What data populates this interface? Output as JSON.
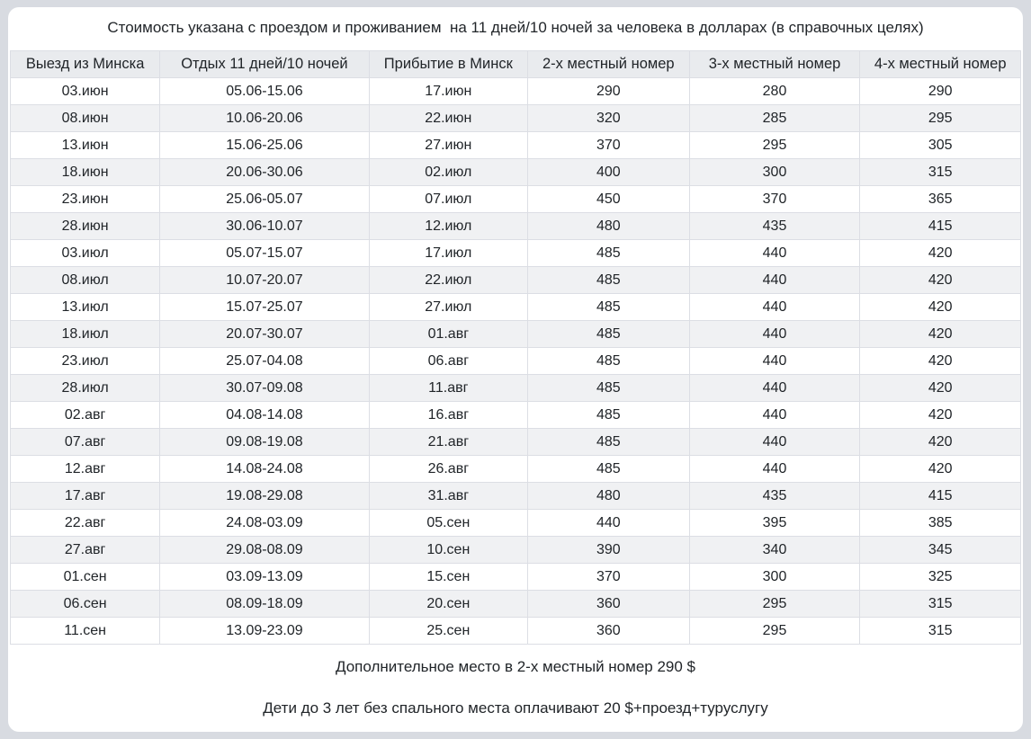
{
  "title": "Стоимость указана с проездом и проживанием  на 11 дней/10 ночей за человека в долларах (в справочных целях)",
  "table": {
    "columns": [
      "Выезд из Минска",
      "Отдых 11 дней/10 ночей",
      "Прибытие в Минск",
      "2-х местный номер",
      "3-х местный номер",
      "4-х местный номер"
    ],
    "rows": [
      [
        "03.июн",
        "05.06-15.06",
        "17.июн",
        "290",
        "280",
        "290"
      ],
      [
        "08.июн",
        "10.06-20.06",
        "22.июн",
        "320",
        "285",
        "295"
      ],
      [
        "13.июн",
        "15.06-25.06",
        "27.июн",
        "370",
        "295",
        "305"
      ],
      [
        "18.июн",
        "20.06-30.06",
        "02.июл",
        "400",
        "300",
        "315"
      ],
      [
        "23.июн",
        "25.06-05.07",
        "07.июл",
        "450",
        "370",
        "365"
      ],
      [
        "28.июн",
        "30.06-10.07",
        "12.июл",
        "480",
        "435",
        "415"
      ],
      [
        "03.июл",
        "05.07-15.07",
        "17.июл",
        "485",
        "440",
        "420"
      ],
      [
        "08.июл",
        "10.07-20.07",
        "22.июл",
        "485",
        "440",
        "420"
      ],
      [
        "13.июл",
        "15.07-25.07",
        "27.июл",
        "485",
        "440",
        "420"
      ],
      [
        "18.июл",
        "20.07-30.07",
        "01.авг",
        "485",
        "440",
        "420"
      ],
      [
        "23.июл",
        "25.07-04.08",
        "06.авг",
        "485",
        "440",
        "420"
      ],
      [
        "28.июл",
        "30.07-09.08",
        "11.авг",
        "485",
        "440",
        "420"
      ],
      [
        "02.авг",
        "04.08-14.08",
        "16.авг",
        "485",
        "440",
        "420"
      ],
      [
        "07.авг",
        "09.08-19.08",
        "21.авг",
        "485",
        "440",
        "420"
      ],
      [
        "12.авг",
        "14.08-24.08",
        "26.авг",
        "485",
        "440",
        "420"
      ],
      [
        "17.авг",
        "19.08-29.08",
        "31.авг",
        "480",
        "435",
        "415"
      ],
      [
        "22.авг",
        "24.08-03.09",
        "05.сен",
        "440",
        "395",
        "385"
      ],
      [
        "27.авг",
        "29.08-08.09",
        "10.сен",
        "390",
        "340",
        "345"
      ],
      [
        "01.сен",
        "03.09-13.09",
        "15.сен",
        "370",
        "300",
        "325"
      ],
      [
        "06.сен",
        "08.09-18.09",
        "20.сен",
        "360",
        "295",
        "315"
      ],
      [
        "11.сен",
        "13.09-23.09",
        "25.сен",
        "360",
        "295",
        "315"
      ]
    ],
    "column_widths_percent": [
      14.8,
      20.7,
      15.7,
      16.0,
      16.9,
      15.9
    ]
  },
  "notes": [
    "Дополнительное место в 2-х местный номер 290 $",
    "Дети до 3 лет без спального места оплачивают 20 $+проезд+туруслугу"
  ],
  "colors": {
    "page_background": "#d8dbe1",
    "card_background": "#ffffff",
    "header_background": "#e9ebee",
    "stripe_background": "#f0f1f3",
    "border": "#dcdee4",
    "text": "#212529"
  }
}
